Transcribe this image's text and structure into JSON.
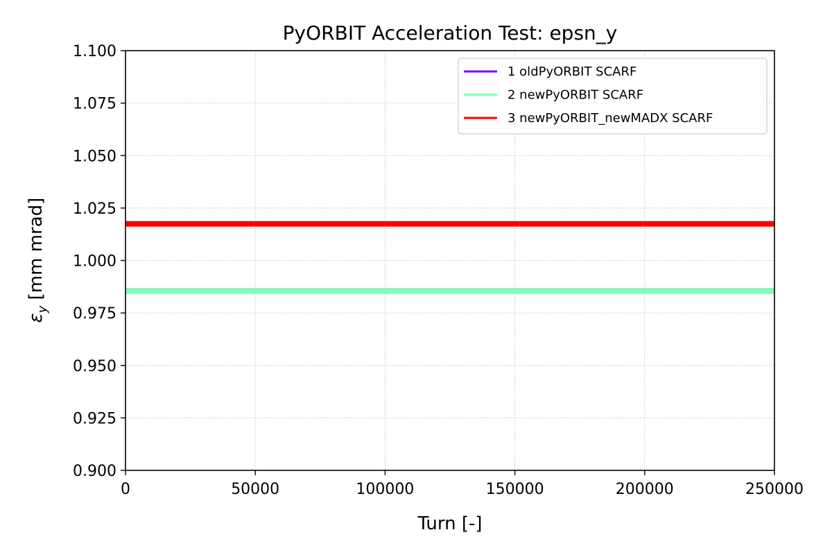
{
  "chart_data": {
    "type": "line",
    "title": "PyORBIT Acceleration Test: epsn_y",
    "xlabel": "Turn [-]",
    "ylabel_symbol": "ε",
    "ylabel_sub": "y",
    "ylabel_unit": " [mm mrad]",
    "xlim": [
      0,
      250000
    ],
    "ylim": [
      0.9,
      1.1
    ],
    "xticks": [
      0,
      50000,
      100000,
      150000,
      200000,
      250000
    ],
    "xtick_labels": [
      "0",
      "50000",
      "100000",
      "150000",
      "200000",
      "250000"
    ],
    "yticks": [
      0.9,
      0.925,
      0.95,
      0.975,
      1.0,
      1.025,
      1.05,
      1.075,
      1.1
    ],
    "ytick_labels": [
      "0.900",
      "0.925",
      "0.950",
      "0.975",
      "1.000",
      "1.025",
      "1.050",
      "1.075",
      "1.100"
    ],
    "grid": true,
    "legend_position": "top-right",
    "series": [
      {
        "name": "1 oldPyORBIT SCARF",
        "color": "#8000ff",
        "x": [
          0,
          50000,
          100000,
          150000,
          200000,
          250000
        ],
        "y": [
          0.9855,
          0.9855,
          0.9855,
          0.9855,
          0.9855,
          0.9855
        ]
      },
      {
        "name": "2 newPyORBIT SCARF",
        "color": "#80ffb4",
        "x": [
          0,
          50000,
          100000,
          150000,
          200000,
          250000
        ],
        "y": [
          0.9855,
          0.9855,
          0.9855,
          0.9855,
          0.9855,
          0.9855
        ]
      },
      {
        "name": "3 newPyORBIT_newMADX SCARF",
        "color": "#ff0000",
        "x": [
          0,
          50000,
          100000,
          150000,
          200000,
          250000
        ],
        "y": [
          1.0175,
          1.0175,
          1.0175,
          1.0175,
          1.0175,
          1.0175
        ]
      }
    ]
  }
}
